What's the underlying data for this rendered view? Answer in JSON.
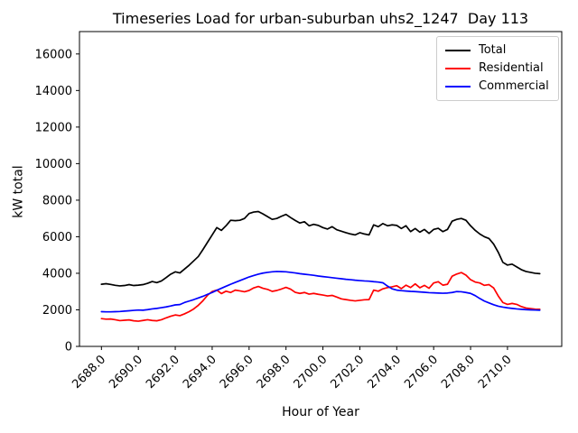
{
  "chart_data": {
    "type": "line",
    "title": "Timeseries Load for urban-suburban uhs2_1247  Day 113",
    "xlabel": "Hour of Year",
    "ylabel": "kW total",
    "legend_position": "upper right",
    "grid": false,
    "xlim": [
      2686.81,
      2712.94
    ],
    "ylim": [
      0,
      17225
    ],
    "xticks": [
      2688,
      2690,
      2692,
      2694,
      2696,
      2698,
      2700,
      2702,
      2704,
      2706,
      2708,
      2710
    ],
    "xtick_labels": [
      "2688.0",
      "2690.0",
      "2692.0",
      "2694.0",
      "2696.0",
      "2698.0",
      "2700.0",
      "2702.0",
      "2704.0",
      "2706.0",
      "2708.0",
      "2710.0"
    ],
    "yticks": [
      0,
      2000,
      4000,
      6000,
      8000,
      10000,
      12000,
      14000,
      16000
    ],
    "ytick_labels": [
      "0",
      "2000",
      "4000",
      "6000",
      "8000",
      "10000",
      "12000",
      "14000",
      "16000"
    ],
    "x": [
      2688,
      2688.25,
      2688.5,
      2688.75,
      2689,
      2689.25,
      2689.5,
      2689.75,
      2690,
      2690.25,
      2690.5,
      2690.75,
      2691,
      2691.25,
      2691.5,
      2691.75,
      2692,
      2692.25,
      2692.5,
      2692.75,
      2693,
      2693.25,
      2693.5,
      2693.75,
      2694,
      2694.25,
      2694.5,
      2694.75,
      2695,
      2695.25,
      2695.5,
      2695.75,
      2696,
      2696.25,
      2696.5,
      2696.75,
      2697,
      2697.25,
      2697.5,
      2697.75,
      2698,
      2698.25,
      2698.5,
      2698.75,
      2699,
      2699.25,
      2699.5,
      2699.75,
      2700,
      2700.25,
      2700.5,
      2700.75,
      2701,
      2701.25,
      2701.5,
      2701.75,
      2702,
      2702.25,
      2702.5,
      2702.75,
      2703,
      2703.25,
      2703.5,
      2703.75,
      2704,
      2704.25,
      2704.5,
      2704.75,
      2705,
      2705.25,
      2705.5,
      2705.75,
      2706,
      2706.25,
      2706.5,
      2706.75,
      2707,
      2707.25,
      2707.5,
      2707.75,
      2708,
      2708.25,
      2708.5,
      2708.75,
      2709,
      2709.25,
      2709.5,
      2709.75,
      2710,
      2710.25,
      2710.5,
      2710.75,
      2711,
      2711.25,
      2711.5,
      2711.75
    ],
    "series": [
      {
        "name": "Total",
        "color": "#000000",
        "values": [
          3400,
          3430,
          3390,
          3340,
          3310,
          3330,
          3380,
          3330,
          3350,
          3380,
          3450,
          3550,
          3490,
          3580,
          3760,
          3950,
          4080,
          4020,
          4230,
          4440,
          4680,
          4920,
          5300,
          5700,
          6100,
          6500,
          6350,
          6600,
          6900,
          6880,
          6900,
          7000,
          7270,
          7350,
          7380,
          7250,
          7100,
          6950,
          7000,
          7120,
          7220,
          7050,
          6890,
          6750,
          6820,
          6600,
          6680,
          6620,
          6500,
          6420,
          6550,
          6380,
          6300,
          6220,
          6150,
          6100,
          6220,
          6150,
          6100,
          6650,
          6550,
          6720,
          6600,
          6650,
          6620,
          6450,
          6600,
          6280,
          6450,
          6250,
          6400,
          6180,
          6400,
          6460,
          6280,
          6400,
          6850,
          6950,
          7000,
          6900,
          6600,
          6350,
          6150,
          6000,
          5900,
          5600,
          5150,
          4600,
          4450,
          4500,
          4350,
          4200,
          4100,
          4050,
          4000,
          3980
        ]
      },
      {
        "name": "Residential",
        "color": "#ff0000",
        "values": [
          1520,
          1490,
          1500,
          1460,
          1410,
          1430,
          1450,
          1400,
          1380,
          1420,
          1460,
          1420,
          1400,
          1460,
          1560,
          1650,
          1720,
          1680,
          1780,
          1900,
          2050,
          2250,
          2500,
          2800,
          3000,
          3080,
          2890,
          3020,
          2950,
          3080,
          3040,
          2990,
          3060,
          3200,
          3280,
          3180,
          3120,
          3010,
          3060,
          3140,
          3230,
          3130,
          2960,
          2900,
          2950,
          2860,
          2900,
          2850,
          2810,
          2760,
          2790,
          2700,
          2600,
          2560,
          2520,
          2490,
          2520,
          2550,
          2560,
          3080,
          3020,
          3150,
          3220,
          3260,
          3320,
          3160,
          3350,
          3220,
          3420,
          3210,
          3340,
          3180,
          3470,
          3540,
          3350,
          3400,
          3840,
          3960,
          4040,
          3900,
          3650,
          3520,
          3470,
          3340,
          3380,
          3200,
          2760,
          2400,
          2300,
          2350,
          2300,
          2180,
          2100,
          2070,
          2040,
          2030
        ]
      },
      {
        "name": "Commercial",
        "color": "#0000ff",
        "values": [
          1900,
          1890,
          1890,
          1900,
          1910,
          1930,
          1950,
          1970,
          1990,
          1980,
          2010,
          2050,
          2080,
          2120,
          2160,
          2210,
          2270,
          2290,
          2400,
          2480,
          2560,
          2650,
          2740,
          2850,
          2950,
          3070,
          3180,
          3290,
          3400,
          3500,
          3600,
          3700,
          3800,
          3880,
          3950,
          4010,
          4050,
          4080,
          4100,
          4090,
          4080,
          4050,
          4020,
          3980,
          3950,
          3920,
          3890,
          3850,
          3820,
          3790,
          3760,
          3730,
          3700,
          3670,
          3650,
          3620,
          3600,
          3580,
          3570,
          3540,
          3520,
          3480,
          3300,
          3150,
          3080,
          3050,
          3030,
          3010,
          3000,
          2980,
          2960,
          2940,
          2930,
          2920,
          2910,
          2920,
          2950,
          3000,
          2990,
          2950,
          2900,
          2780,
          2620,
          2480,
          2380,
          2280,
          2200,
          2150,
          2110,
          2080,
          2050,
          2030,
          2010,
          2000,
          1990,
          1980
        ]
      }
    ]
  }
}
